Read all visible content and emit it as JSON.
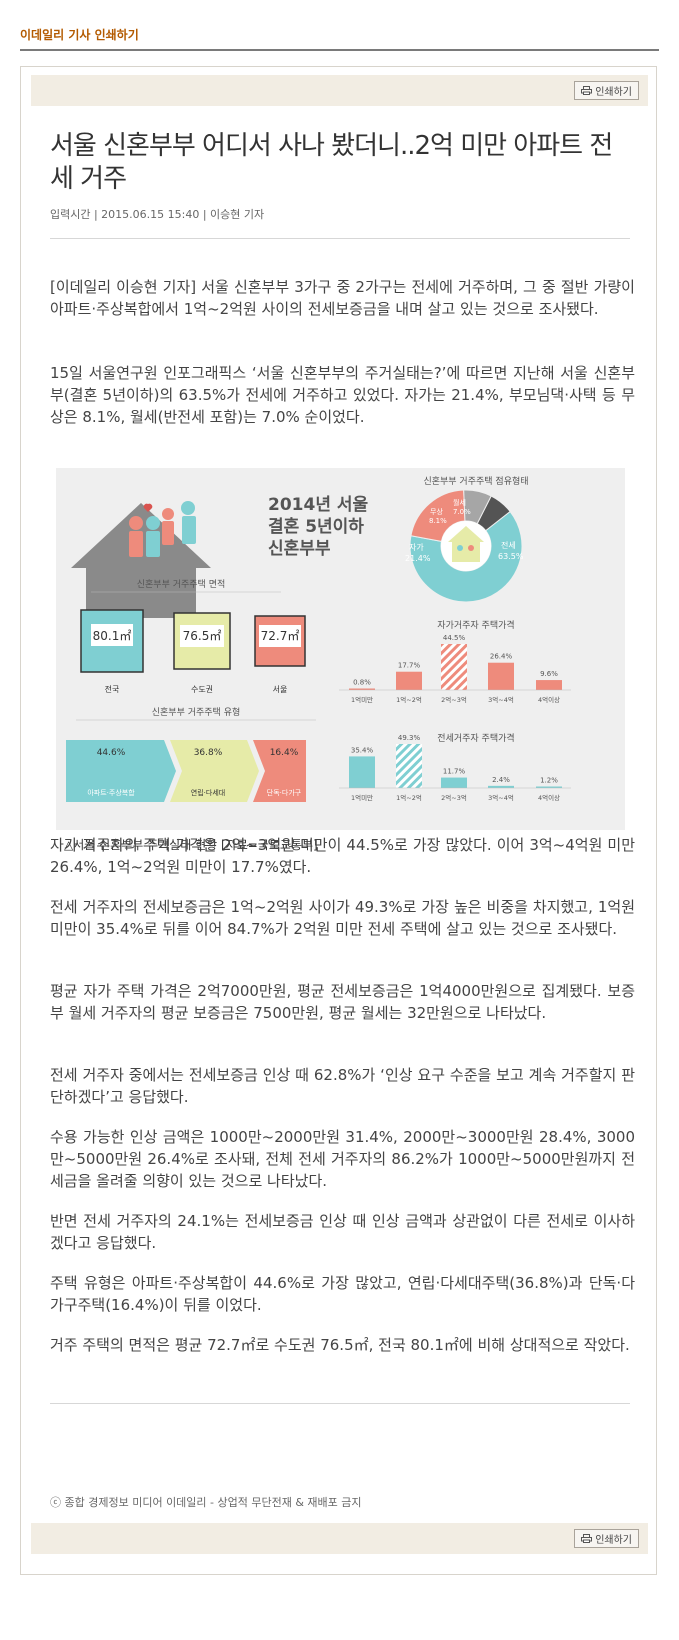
{
  "site_title": "이데일리 기사 인쇄하기",
  "print_label": "인쇄하기",
  "headline": "서울 신혼부부 어디서 사나 봤더니..2억 미만 아파트 전세 거주",
  "byline": "입력시간 | 2015.06.15 15:40 | 이승현 기자",
  "paragraphs": [
    "[이데일리 이승현 기자] 서울 신혼부부 3가구 중 2가구는 전세에 거주하며, 그 중 절반 가량이 아파트·주상복합에서 1억~2억원 사이의 전세보증금을 내며 살고 있는 것으로 조사됐다.",
    "15일 서울연구원 인포그래픽스 ‘서울 신혼부부의 주거실태는?’에 따르면 지난해 서울 신혼부부(결혼 5년이하)의 63.5%가 전세에 거주하고 있었다. 자가는 21.4%, 부모님댁·사택 등 무상은 8.1%, 월세(반전세 포함)는 7.0% 순이었다.",
    "자가 거주자의 주택 가격은 2억~3억원 미만이 44.5%로 가장 많았다. 이어 3억~4억원 미만 26.4%, 1억~2억원 미만이 17.7%였다.",
    "전세 거주자의 전세보증금은 1억~2억원 사이가 49.3%로 가장 높은 비중을 차지했고, 1억원 미만이 35.4%로 뒤를 이어 84.7%가 2억원 미만 전세 주택에 살고 있는 것으로 조사됐다.",
    "평균 자가 주택 가격은 2억7000만원, 평균 전세보증금은 1억4000만원으로 집계됐다. 보증부 월세 거주자의 평균 보증금은 7500만원, 평균 월세는 32만원으로 나타났다.",
    "전세 거주자 중에서는 전세보증금 인상 때 62.8%가 ‘인상 요구 수준을 보고 계속 거주할지 판단하겠다’고 응답했다.",
    "수용 가능한 인상 금액은 1000만~2000만원 31.4%, 2000만~3000만원 28.4%, 3000만~5000만원 26.4%로 조사돼, 전체 전세 거주자의 86.2%가 1000만~5000만원까지 전세금을 올려줄 의향이 있는 것으로 나타났다.",
    "반면 전세 거주자의 24.1%는 전세보증금 인상 때 인상 금액과 상관없이 다른 전세로 이사하겠다고 응답했다.",
    "주택 유형은 아파트·주상복합이 44.6%로 가장 많았고, 연립·다세대주택(36.8%)과 단독·다가구주택(16.4%)이 뒤를 이었다.",
    "거주 주택의 면적은 평균 72.7㎡로 수도권 76.5㎡, 전국 80.1㎡에 비해 상대적으로 작았다."
  ],
  "infographic": {
    "title": [
      "2014년 서울",
      "결혼 5년이하",
      "신혼부부"
    ],
    "tenure_title": "신혼부부 거주주택 점유형태",
    "tenure": [
      {
        "label": "전세",
        "value": "63.5%",
        "pct": 63.5,
        "color": "#7fcfd2"
      },
      {
        "label": "자가",
        "value": "21.4%",
        "pct": 21.4,
        "color": "#ee8b7c"
      },
      {
        "label": "무상",
        "value": "8.1%",
        "pct": 8.1,
        "color": "#a6a6a6"
      },
      {
        "label": "월세",
        "value": "7.0%",
        "pct": 7.0,
        "color": "#545454"
      }
    ],
    "area_title": "신혼부부 거주주택 면적",
    "areas": [
      {
        "label": "전국",
        "value": "80.1㎡",
        "color": "#7fcfd2"
      },
      {
        "label": "수도권",
        "value": "76.5㎡",
        "color": "#e6eba8"
      },
      {
        "label": "서울",
        "value": "72.7㎡",
        "color": "#ee8b7c"
      }
    ],
    "type_title": "신혼부부 거주주택 유형",
    "types": [
      {
        "label": "아파트·주상복합",
        "value": "44.6%",
        "color": "#7fcfd2"
      },
      {
        "label": "연립·다세대",
        "value": "36.8%",
        "color": "#e6eba8"
      },
      {
        "label": "단독·다가구",
        "value": "16.4%",
        "color": "#ee8b7c"
      }
    ],
    "own_title": "자가거주자 주택가격",
    "own_prices": [
      {
        "label": "1억미만",
        "value": "0.8%",
        "pct": 0.8
      },
      {
        "label": "1억~2억",
        "value": "17.7%",
        "pct": 17.7
      },
      {
        "label": "2억~3억",
        "value": "44.5%",
        "pct": 44.5
      },
      {
        "label": "3억~4억",
        "value": "26.4%",
        "pct": 26.4
      },
      {
        "label": "4억이상",
        "value": "9.6%",
        "pct": 9.6
      }
    ],
    "jeonse_title": "전세거주자 주택가격",
    "jeonse_prices": [
      {
        "label": "1억미만",
        "value": "35.4%",
        "pct": 35.4
      },
      {
        "label": "1억~2억",
        "value": "49.3%",
        "pct": 49.3
      },
      {
        "label": "2억~3억",
        "value": "11.7%",
        "pct": 11.7
      },
      {
        "label": "3억~4억",
        "value": "2.4%",
        "pct": 2.4
      },
      {
        "label": "4억이상",
        "value": "1.2%",
        "pct": 1.2
      }
    ],
    "own_color": "#ee8b7c",
    "jeonse_color": "#7fcfd2",
    "caption": "△서울 신혼부부 주거실태 현황 [자료=국토교통부]"
  },
  "copyright": "ⓒ 종합 경제정보 미디어 이데일리 - 상업적 무단전재 & 재배포 금지"
}
